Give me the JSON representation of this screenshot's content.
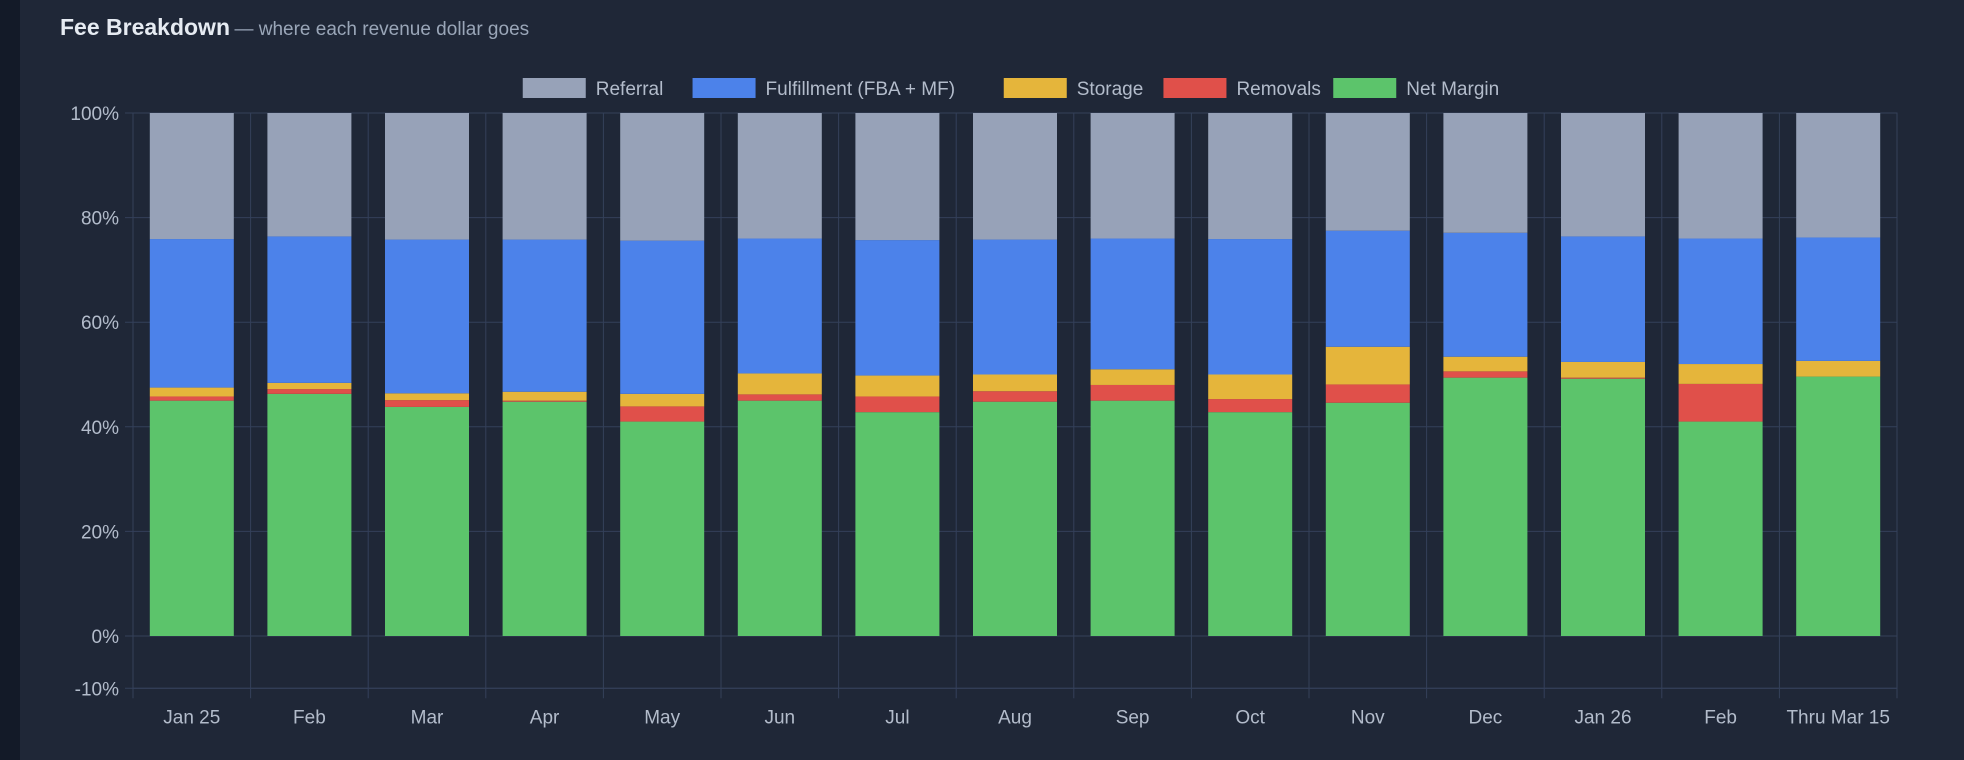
{
  "header": {
    "title": "Fee Breakdown",
    "subtitle": "— where each revenue dollar goes"
  },
  "chart_data": {
    "type": "bar",
    "stacked": true,
    "categories": [
      "Jan 25",
      "Feb",
      "Mar",
      "Apr",
      "May",
      "Jun",
      "Jul",
      "Aug",
      "Sep",
      "Oct",
      "Nov",
      "Dec",
      "Jan 26",
      "Feb",
      "Thru Mar 15"
    ],
    "series": [
      {
        "name": "Net Margin",
        "color": "#5cc46b",
        "values": [
          45.0,
          46.3,
          43.8,
          44.8,
          41.0,
          45.0,
          42.8,
          44.8,
          45.0,
          42.8,
          44.6,
          49.4,
          49.2,
          41.0,
          49.6
        ]
      },
      {
        "name": "Removals",
        "color": "#e0504a",
        "values": [
          0.8,
          0.9,
          1.3,
          0.2,
          2.9,
          1.2,
          3.0,
          2.0,
          3.0,
          2.5,
          3.5,
          1.2,
          0.2,
          7.2,
          0.0
        ]
      },
      {
        "name": "Storage",
        "color": "#e5b53b",
        "values": [
          1.7,
          1.2,
          1.3,
          1.7,
          2.4,
          4.0,
          4.0,
          3.2,
          3.0,
          4.7,
          7.2,
          2.8,
          3.0,
          3.8,
          3.0
        ]
      },
      {
        "name": "Fulfillment (FBA + MF)",
        "color": "#4c82ea",
        "values": [
          28.4,
          28.0,
          29.4,
          29.1,
          29.3,
          25.8,
          25.9,
          25.8,
          25.0,
          25.9,
          22.2,
          23.7,
          24.0,
          24.0,
          23.6
        ]
      },
      {
        "name": "Referral",
        "color": "#97a2b8",
        "values": [
          24.1,
          23.6,
          24.2,
          24.2,
          24.4,
          24.0,
          24.3,
          24.2,
          24.0,
          24.1,
          22.5,
          22.9,
          23.6,
          24.0,
          23.8
        ]
      }
    ],
    "legend_order": [
      "Referral",
      "Fulfillment (FBA + MF)",
      "Storage",
      "Removals",
      "Net Margin"
    ],
    "yticks": [
      "100%",
      "80%",
      "60%",
      "40%",
      "20%",
      "0%",
      "-10%"
    ],
    "ytick_values": [
      100,
      80,
      60,
      40,
      20,
      0,
      -10
    ],
    "ylim": [
      -10,
      100
    ],
    "legend_position": "top-center",
    "grid": true,
    "ylabel": "",
    "xlabel": ""
  }
}
